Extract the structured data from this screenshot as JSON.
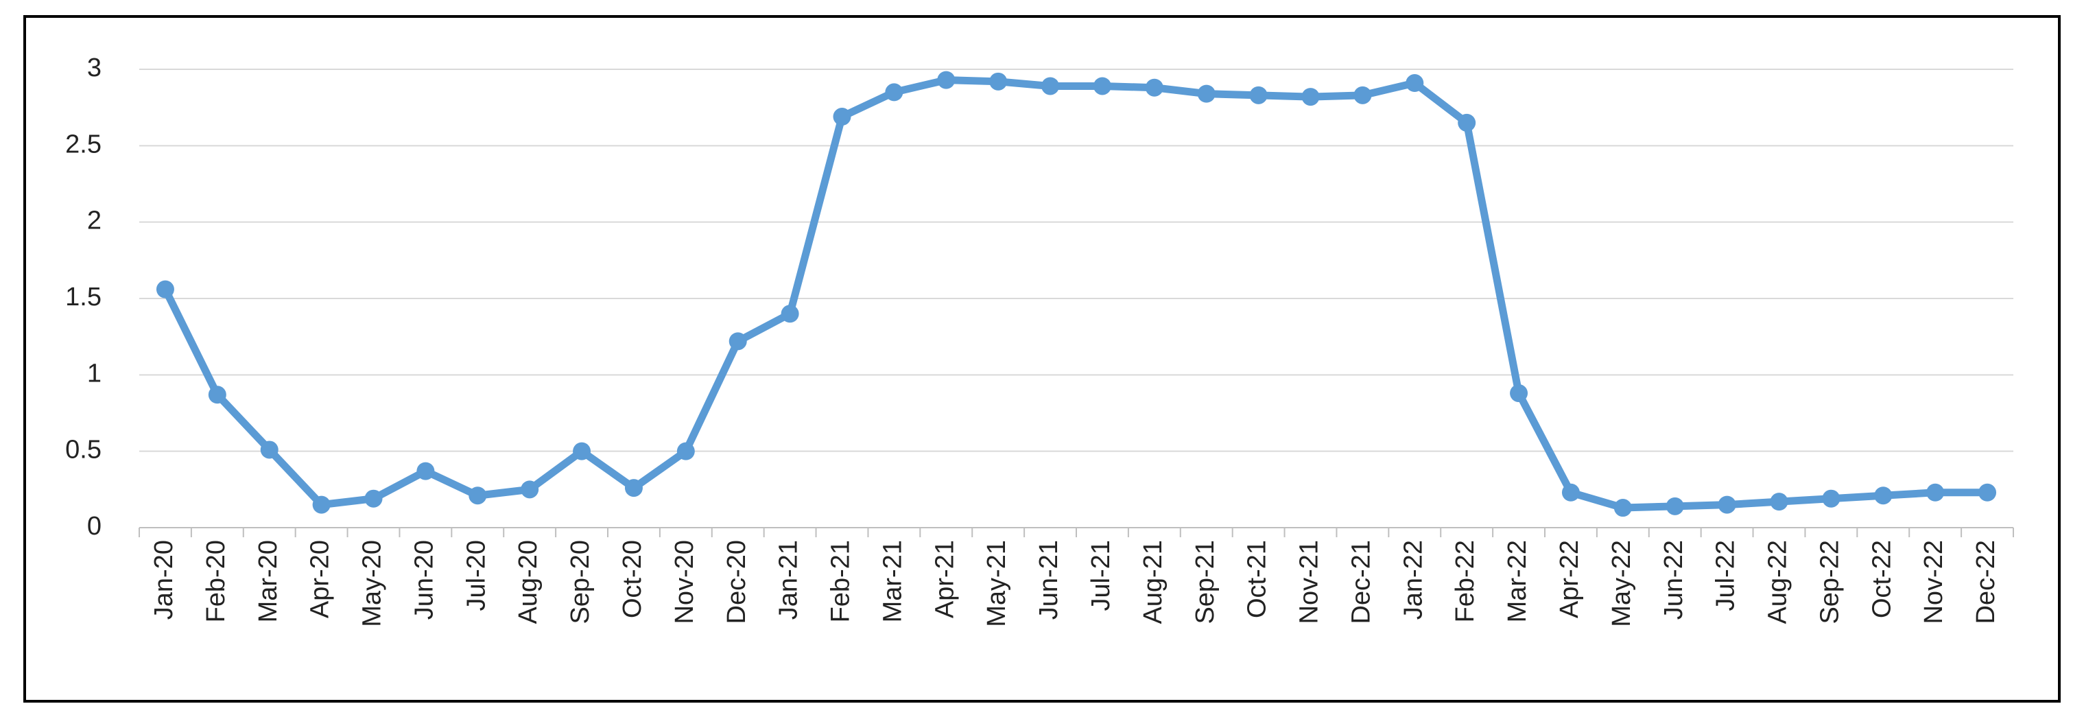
{
  "chart_data": {
    "type": "line",
    "categories": [
      "Jan-20",
      "Feb-20",
      "Mar-20",
      "Apr-20",
      "May-20",
      "Jun-20",
      "Jul-20",
      "Aug-20",
      "Sep-20",
      "Oct-20",
      "Nov-20",
      "Dec-20",
      "Jan-21",
      "Feb-21",
      "Mar-21",
      "Apr-21",
      "May-21",
      "Jun-21",
      "Jul-21",
      "Aug-21",
      "Sep-21",
      "Oct-21",
      "Nov-21",
      "Dec-21",
      "Jan-22",
      "Feb-22",
      "Mar-22",
      "Apr-22",
      "May-22",
      "Jun-22",
      "Jul-22",
      "Aug-22",
      "Sep-22",
      "Oct-22",
      "Nov-22",
      "Dec-22"
    ],
    "values": [
      1.56,
      0.87,
      0.51,
      0.15,
      0.19,
      0.37,
      0.21,
      0.25,
      0.5,
      0.26,
      0.5,
      1.22,
      1.4,
      2.69,
      2.85,
      2.93,
      2.92,
      2.89,
      2.89,
      2.88,
      2.84,
      2.83,
      2.82,
      2.83,
      2.91,
      2.65,
      0.88,
      0.23,
      0.13,
      0.14,
      0.15,
      0.17,
      0.19,
      0.21,
      0.23,
      0.23
    ],
    "color": "#5b9bd5",
    "ylim": [
      0,
      3
    ],
    "yticks": [
      0,
      0.5,
      1,
      1.5,
      2,
      2.5,
      3
    ],
    "grid": true
  }
}
